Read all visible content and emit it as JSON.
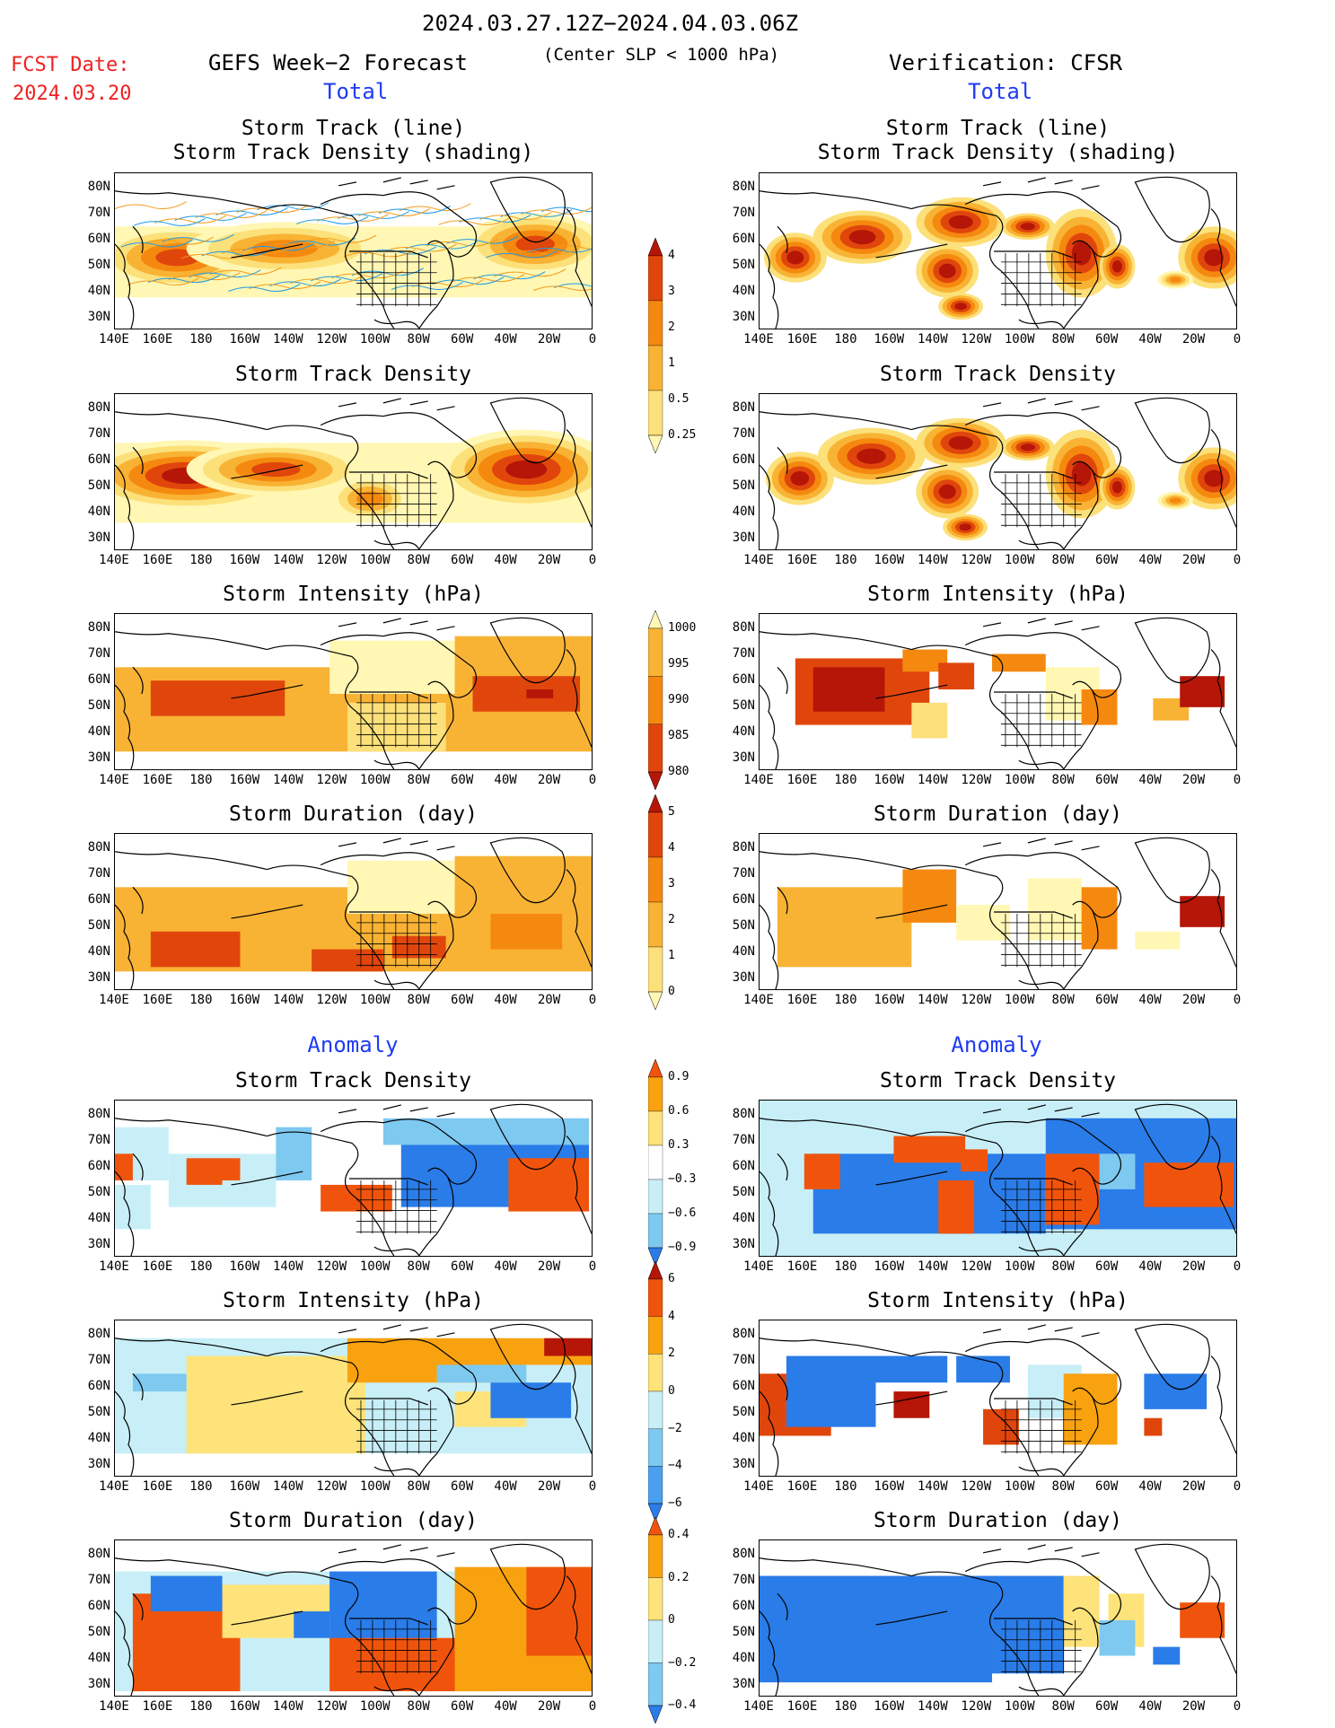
{
  "header": {
    "date_range": "2024.03.27.12Z−2024.04.03.06Z",
    "fcst_date_label": "FCST Date:",
    "fcst_date_value": "2024.03.20",
    "left_title": "GEFS Week−2 Forecast",
    "center_subtitle": "(Center SLP < 1000 hPa)",
    "right_title": "Verification: CFSR",
    "left_total": "Total",
    "right_total": "Total"
  },
  "sections": {
    "anomaly_left": "Anomaly",
    "anomaly_right": "Anomaly"
  },
  "panel_titles": {
    "track_line": "Storm Track (line)",
    "track_density_shading": "Storm Track Density (shading)",
    "track_density": "Storm Track Density",
    "intensity": "Storm Intensity (hPa)",
    "duration": "Storm Duration (day)"
  },
  "axes": {
    "lat_ticks": [
      "80N",
      "70N",
      "60N",
      "50N",
      "40N",
      "30N"
    ],
    "lon_ticks": [
      "140E",
      "160E",
      "180",
      "160W",
      "140W",
      "120W",
      "100W",
      "80W",
      "60W",
      "40W",
      "20W",
      "0"
    ]
  },
  "colorbars": {
    "density": [
      "4",
      "3",
      "2",
      "1",
      "0.5",
      "0.25"
    ],
    "intensity": [
      "1000",
      "995",
      "990",
      "985",
      "980"
    ],
    "duration": [
      "5",
      "4",
      "3",
      "2",
      "1",
      "0"
    ],
    "density_anom": [
      "0.9",
      "0.6",
      "0.3",
      "−0.3",
      "−0.6",
      "−0.9"
    ],
    "intensity_anom": [
      "6",
      "4",
      "2",
      "0",
      "−2",
      "−4",
      "−6"
    ],
    "duration_anom": [
      "0.4",
      "0.2",
      "0",
      "−0.2",
      "−0.4"
    ]
  },
  "colors": {
    "title_blue": "#1f3bf2",
    "fcst_red": "#ee2222",
    "shade_scale": [
      "#fff7b3",
      "#fce07a",
      "#f9b334",
      "#f5890f",
      "#e0460c",
      "#b51607"
    ],
    "anom_pos": [
      "#fde37a",
      "#f8a20f",
      "#f0540c"
    ],
    "anom_neg": [
      "#c8eff8",
      "#7ec9f0",
      "#2a7ce8"
    ]
  }
}
